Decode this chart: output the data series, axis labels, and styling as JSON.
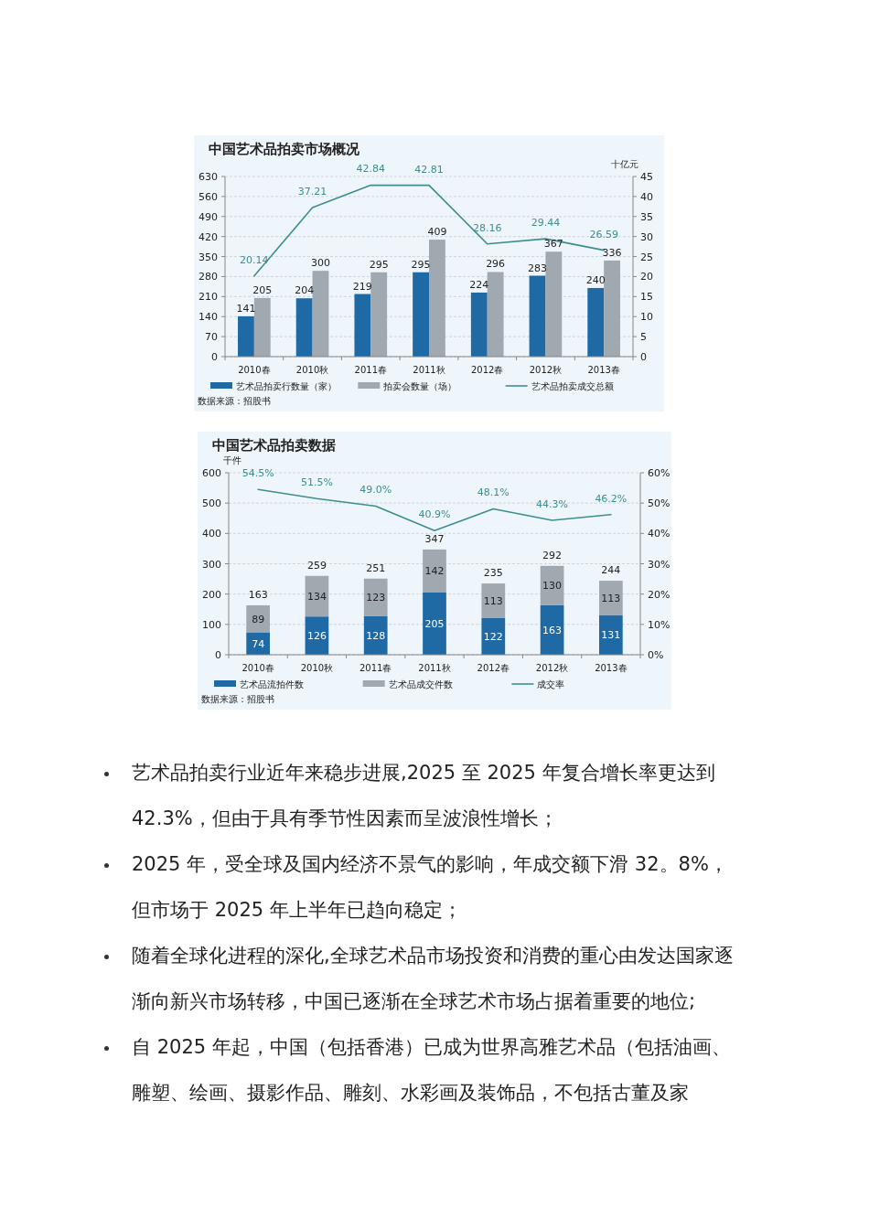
{
  "chart_data": [
    {
      "type": "bar",
      "title": "中国艺术品拍卖市场概况",
      "categories": [
        "2010春",
        "2010秋",
        "2011春",
        "2011秋",
        "2012春",
        "2012秋",
        "2013春"
      ],
      "series": [
        {
          "name": "艺术品拍卖行数量（家）",
          "color": "#1f6aa5",
          "values": [
            141,
            204,
            219,
            295,
            224,
            283,
            240
          ]
        },
        {
          "name": "拍卖会数量（场）",
          "color": "#a0a8b0",
          "values": [
            205,
            300,
            295,
            409,
            296,
            367,
            336
          ]
        },
        {
          "name": "艺术品拍卖成交总额",
          "type": "line",
          "axis": "y2",
          "color": "#3e8e8e",
          "values": [
            20.14,
            37.21,
            42.84,
            42.81,
            28.16,
            29.44,
            26.59
          ]
        }
      ],
      "data_labels": true,
      "ylim": [
        0,
        630
      ],
      "yticks": [
        0,
        70,
        140,
        210,
        280,
        350,
        420,
        490,
        560,
        630
      ],
      "y2lim": [
        0,
        45
      ],
      "y2ticks": [
        0,
        5,
        10,
        15,
        20,
        25,
        30,
        35,
        40,
        45
      ],
      "y2label": "十亿元",
      "grid": "y",
      "legend": "bottom",
      "annotations": [
        "数据来源：招股书"
      ]
    },
    {
      "type": "bar",
      "title": "中国艺术品拍卖数据",
      "categories": [
        "2010春",
        "2010秋",
        "2011春",
        "2011秋",
        "2012春",
        "2012秋",
        "2013春"
      ],
      "stacked": true,
      "series": [
        {
          "name": "艺术品流拍件数",
          "color": "#1f6aa5",
          "values": [
            74,
            126,
            128,
            205,
            122,
            163,
            131
          ],
          "value_labels": [
            "74",
            "126",
            "128",
            "205",
            "122",
            "163",
            "131"
          ]
        },
        {
          "name": "艺术品成交件数",
          "color": "#a0a8b0",
          "values": [
            89,
            134,
            123,
            142,
            113,
            130,
            113
          ],
          "value_labels": [
            "89",
            "134",
            "123",
            "142",
            "113",
            "130",
            "113"
          ]
        },
        {
          "name": "成交率",
          "type": "line",
          "axis": "y2",
          "color": "#3e8e8e",
          "values": [
            54.5,
            51.5,
            49.0,
            40.9,
            48.1,
            44.3,
            46.2
          ],
          "value_labels": [
            "54.5%",
            "51.5%",
            "49.0%",
            "40.9%",
            "48.1%",
            "44.3%",
            "46.2%"
          ]
        }
      ],
      "totals": [
        "163",
        "259",
        "251",
        "347",
        "235",
        "292",
        "244"
      ],
      "ylim": [
        0,
        600
      ],
      "yticks": [
        0,
        100,
        200,
        300,
        400,
        500,
        600
      ],
      "y2lim": [
        0,
        60
      ],
      "y2ticks": [
        {
          "value": 0,
          "label": "0%"
        },
        {
          "value": 10,
          "label": "10%"
        },
        {
          "value": 20,
          "label": "20%"
        },
        {
          "value": 30,
          "label": "30%"
        },
        {
          "value": 40,
          "label": "40%"
        },
        {
          "value": 50,
          "label": "50%"
        },
        {
          "value": 60,
          "label": "60%"
        }
      ],
      "ylabel": "千件",
      "grid": "y",
      "legend": "bottom",
      "annotations": [
        "数据来源：招股书"
      ]
    },
    {
      "type": "other",
      "annotations": [
        "艺术品拍卖行业近年来稳步进展,2025 至 2025 年复合增长率更达到 42.3%，但由于具有季节性因素而呈波浪性增长；",
        "2025 年，受全球及国内经济不景气的影响，年成交额下滑 32。8%，但市场于 2025 年上半年已趋向稳定；",
        "随着全球化进程的深化,全球艺术品市场投资和消费的重心由发达国家逐渐向新兴市场转移，中国已逐渐在全球艺术市场占据着重要的地位;",
        "自 2025 年起，中国（包括香港）已成为世界高雅艺术品（包括油画、雕塑、绘画、摄影作品、雕刻、水彩画及装饰品，不包括古董及家"
      ]
    }
  ]
}
